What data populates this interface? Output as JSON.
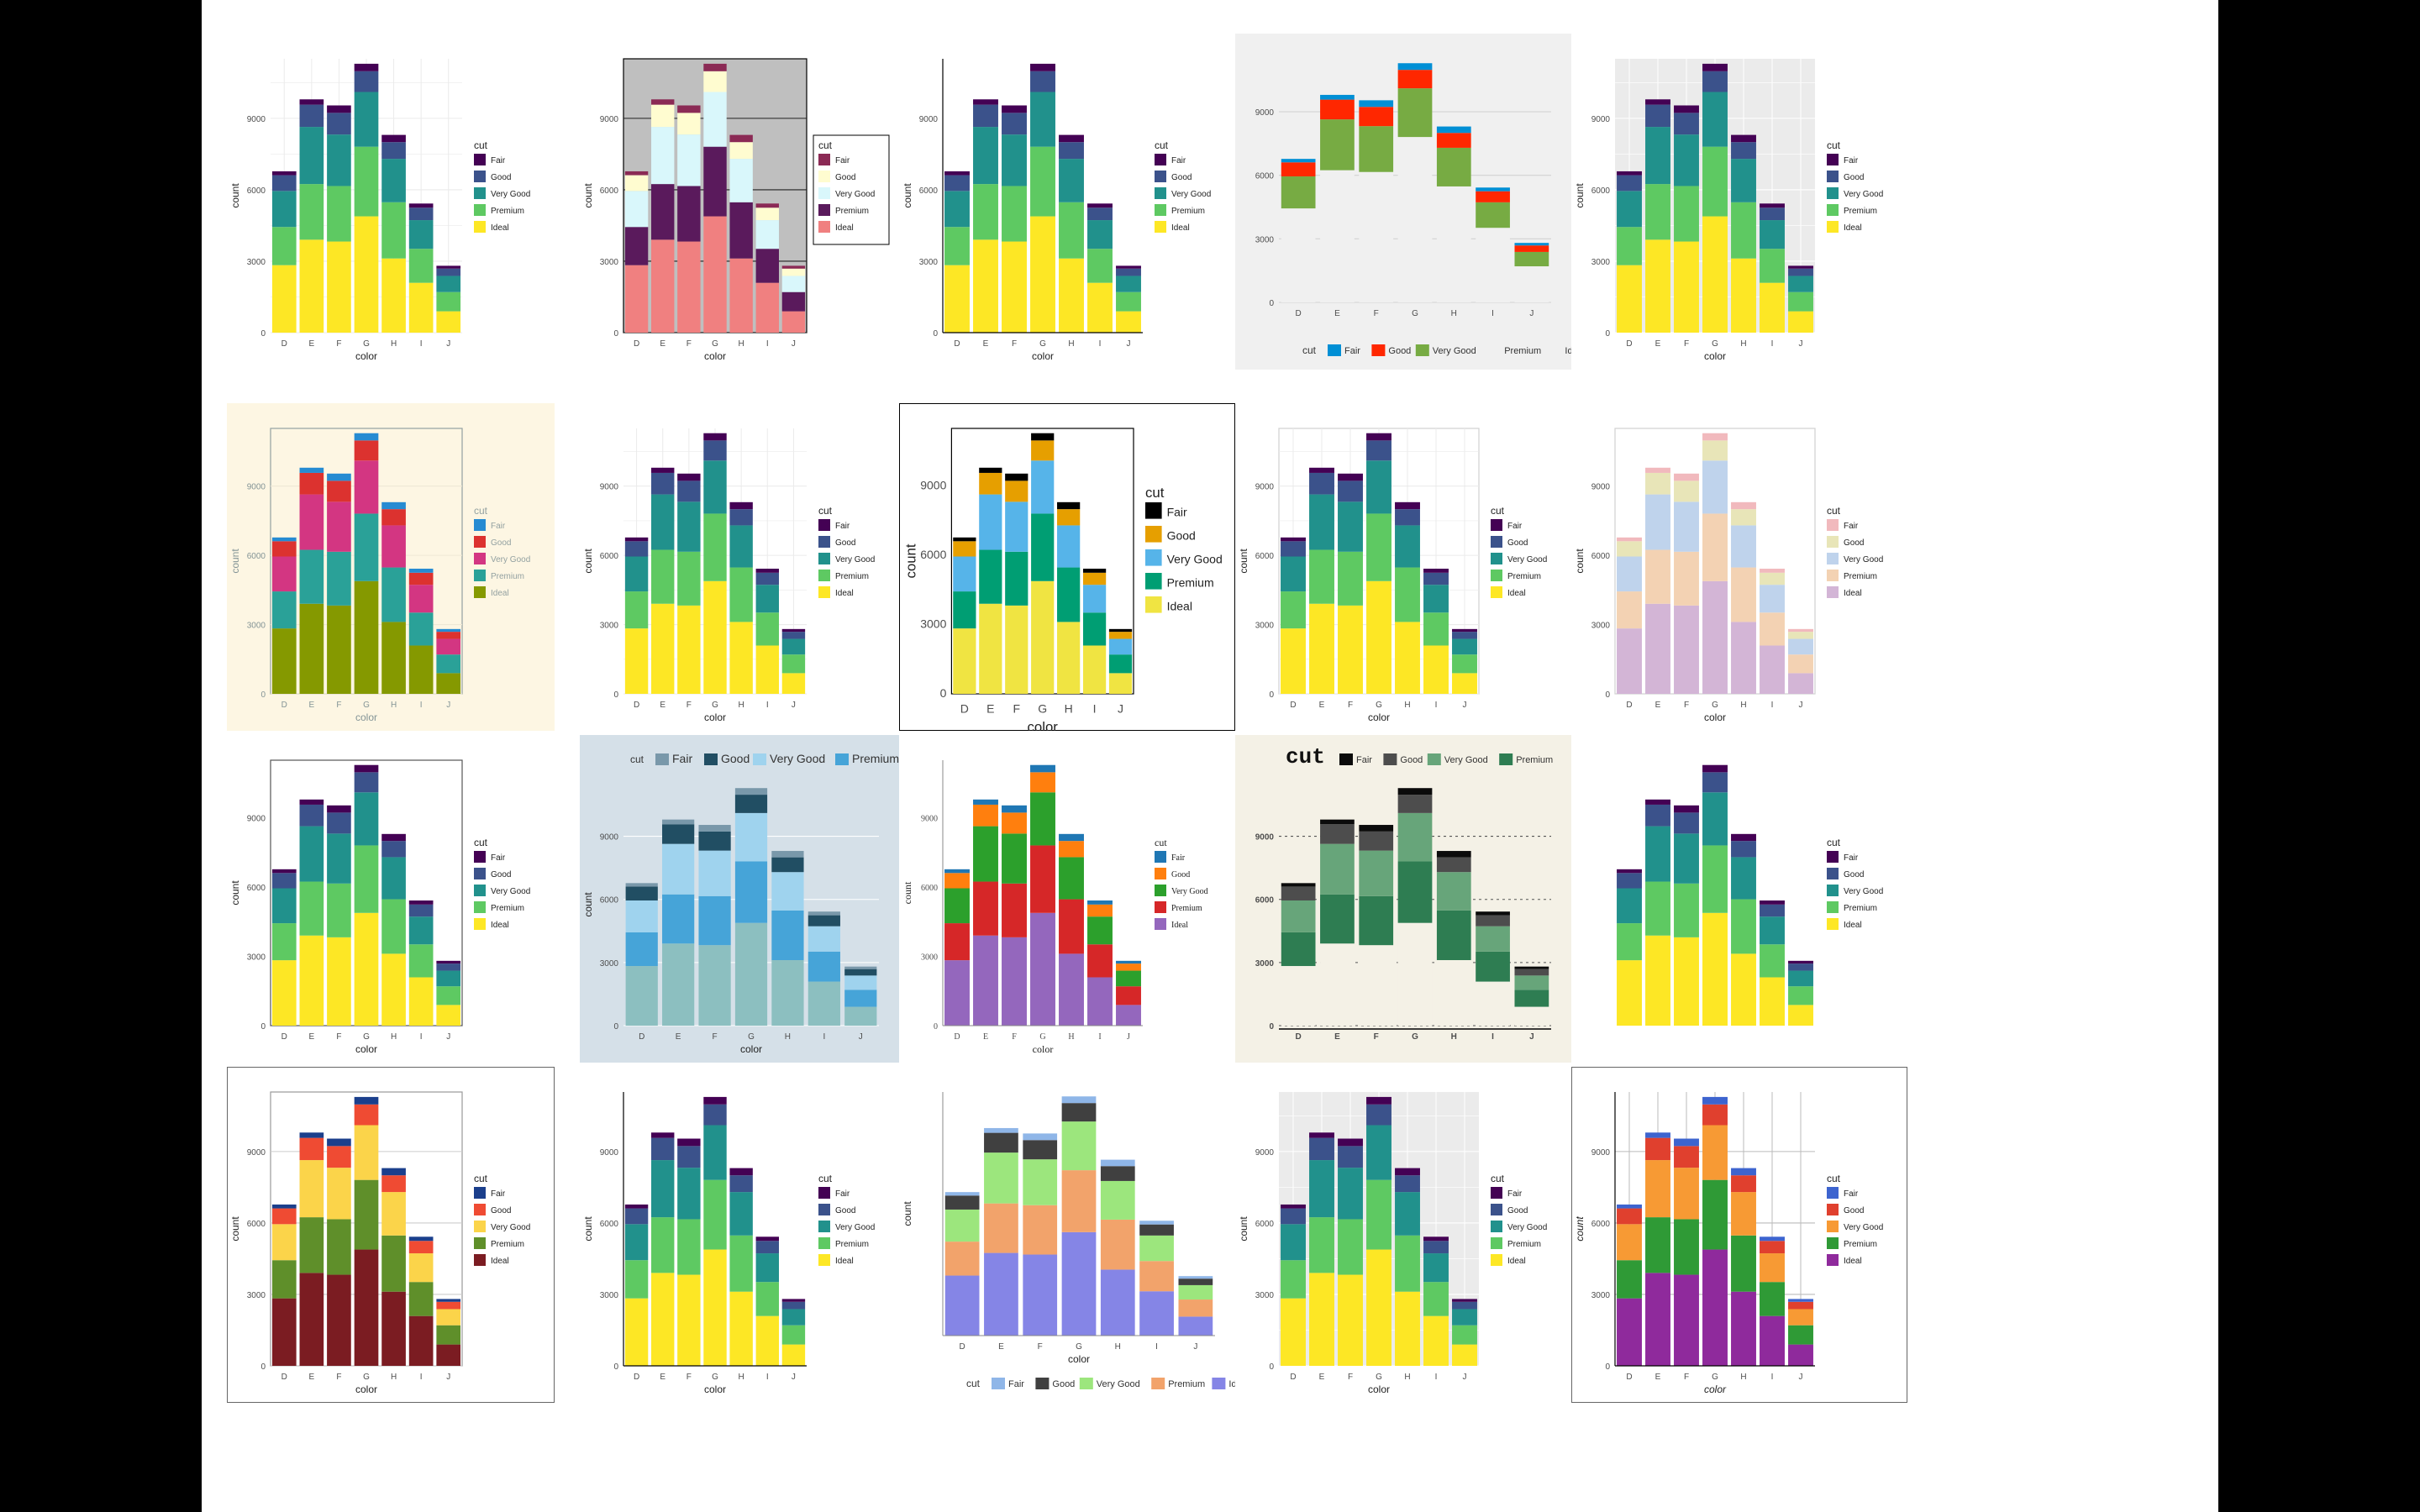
{
  "chart_data": {
    "type": "bar",
    "stacked": true,
    "categories": [
      "D",
      "E",
      "F",
      "G",
      "H",
      "I",
      "J"
    ],
    "xlabel": "color",
    "ylabel": "count",
    "legend_title": "cut",
    "yticks": [
      0,
      3000,
      6000,
      9000
    ],
    "ylim": [
      0,
      11500
    ],
    "series": [
      {
        "name": "Ideal",
        "values": [
          2834,
          3903,
          3826,
          4884,
          3115,
          2093,
          896
        ]
      },
      {
        "name": "Premium",
        "values": [
          1603,
          2337,
          2331,
          2924,
          2360,
          1428,
          808
        ]
      },
      {
        "name": "Very Good",
        "values": [
          1513,
          2400,
          2164,
          2299,
          1824,
          1204,
          678
        ]
      },
      {
        "name": "Good",
        "values": [
          662,
          933,
          909,
          871,
          702,
          522,
          307
        ]
      },
      {
        "name": "Fair",
        "values": [
          163,
          224,
          312,
          314,
          303,
          175,
          119
        ]
      }
    ],
    "legend_order": [
      "Fair",
      "Good",
      "Very Good",
      "Premium",
      "Ideal"
    ]
  },
  "themes": [
    {
      "col": 0,
      "row": 0,
      "bg": "#ffffff",
      "plot": "#ffffff",
      "grid": "#ebebeb",
      "minor": true,
      "axes": false,
      "legend": "right",
      "colors": [
        "#fde725",
        "#5ec962",
        "#21918c",
        "#3b528b",
        "#440154"
      ]
    },
    {
      "col": 1,
      "row": 0,
      "bg": "#ffffff",
      "plot": "#bfbfbf",
      "grid": "#222222",
      "minor": false,
      "axes": false,
      "box": "#000",
      "legend": "right",
      "legend_box": true,
      "colors": [
        "#f08080",
        "#5a1a5c",
        "#d9f7fb",
        "#fffcd0",
        "#8b2a55"
      ]
    },
    {
      "col": 2,
      "row": 0,
      "bg": "#ffffff",
      "plot": "#ffffff",
      "grid": null,
      "minor": false,
      "axes": true,
      "legend": "right",
      "colors": [
        "#fde725",
        "#5ec962",
        "#21918c",
        "#3b528b",
        "#440154"
      ]
    },
    {
      "col": 3,
      "row": 0,
      "bg": "#f0f0f0",
      "plot": "#f0f0f0",
      "grid": "#d2d2d2",
      "minor": false,
      "axes": false,
      "legend": "bottom",
      "floating": true,
      "colors": [
        "#f0f0f0",
        "#f0f0f0",
        "#77ab43",
        "#ff2700",
        "#008fd5"
      ]
    },
    {
      "col": 4,
      "row": 0,
      "bg": "#ffffff",
      "plot": "#ebebeb",
      "grid": "#ffffff",
      "minor": true,
      "axes": false,
      "legend": "right",
      "colors": [
        "#fde725",
        "#5ec962",
        "#21918c",
        "#3b528b",
        "#440154"
      ]
    },
    {
      "col": 0,
      "row": 1,
      "bg": "#fdf6e3",
      "plot": "#fdf6e3",
      "grid": "#eee8d5",
      "minor": false,
      "axes": false,
      "box": "#93a1a1",
      "legend": "right",
      "muted_legend": true,
      "colors": [
        "#859900",
        "#2aa198",
        "#d33682",
        "#dc322f",
        "#268bd2"
      ]
    },
    {
      "col": 1,
      "row": 1,
      "bg": "#ffffff",
      "plot": "#ffffff",
      "grid": "#ebebeb",
      "minor": true,
      "axes": false,
      "legend": "right",
      "colors": [
        "#fde725",
        "#5ec962",
        "#21918c",
        "#3b528b",
        "#440154"
      ]
    },
    {
      "col": 2,
      "row": 1,
      "bg": "#ffffff",
      "plot": "#ffffff",
      "grid": null,
      "minor": false,
      "axes": false,
      "box": "#000",
      "outer_box": "#000",
      "legend": "right",
      "big": true,
      "colors": [
        "#f0e442",
        "#009e73",
        "#56b4e9",
        "#e69f00",
        "#000000"
      ]
    },
    {
      "col": 3,
      "row": 1,
      "bg": "#ffffff",
      "plot": "#ffffff",
      "grid": "#ebebeb",
      "minor": true,
      "axes": false,
      "box": "#d0d0d0",
      "legend": "right",
      "colors": [
        "#fde725",
        "#5ec962",
        "#21918c",
        "#3b528b",
        "#440154"
      ]
    },
    {
      "col": 4,
      "row": 1,
      "bg": "#ffffff",
      "plot": "#ffffff",
      "grid": null,
      "minor": false,
      "axes": false,
      "box": "#d0d0d0",
      "legend": "right",
      "colors": [
        "#d3b5d6",
        "#f3d2b3",
        "#bfd3ec",
        "#e8e5b8",
        "#f1b9bd"
      ]
    },
    {
      "col": 0,
      "row": 2,
      "bg": "#ffffff",
      "plot": "#ffffff",
      "grid": null,
      "minor": false,
      "axes": false,
      "box": "#555",
      "legend": "right",
      "colors": [
        "#fde725",
        "#5ec962",
        "#21918c",
        "#3b528b",
        "#440154"
      ]
    },
    {
      "col": 1,
      "row": 2,
      "bg": "#d5e0e8",
      "plot": "#d5e0e8",
      "grid": "#ffffff",
      "minor": false,
      "axes": false,
      "legend": "top",
      "colors": [
        "#8cbfc0",
        "#46a4d8",
        "#9fd3ee",
        "#214e63",
        "#7998aa"
      ]
    },
    {
      "col": 2,
      "row": 2,
      "bg": "#ffffff",
      "plot": "#ffffff",
      "grid": null,
      "minor": false,
      "axes": "light",
      "legend": "right",
      "serif": true,
      "colors": [
        "#9467bd",
        "#d62728",
        "#2ca02c",
        "#ff7f0e",
        "#1f77b4"
      ]
    },
    {
      "col": 3,
      "row": 2,
      "bg": "#f4f1e6",
      "plot": "#f4f1e6",
      "grid": "#555555",
      "dotted": true,
      "minor": false,
      "axes": "xonly",
      "legend": "top",
      "mono_title": true,
      "colors": [
        "#f4f1e6",
        "#2e7d52",
        "#67a57a",
        "#4d4d4d",
        "#0b0b0b"
      ]
    },
    {
      "col": 4,
      "row": 2,
      "bg": "#ffffff",
      "plot": "#ffffff",
      "grid": null,
      "minor": false,
      "axes": false,
      "noaxis": true,
      "legend": "right",
      "colors": [
        "#fde725",
        "#5ec962",
        "#21918c",
        "#3b528b",
        "#440154"
      ]
    },
    {
      "col": 0,
      "row": 3,
      "bg": "#ffffff",
      "plot": "#ffffff",
      "grid": "#cccccc",
      "minor": false,
      "axes": false,
      "box": "#999",
      "outer_box": "#666",
      "legend": "right",
      "colors": [
        "#7b1c22",
        "#5f8f2a",
        "#fbd44a",
        "#ef4b33",
        "#1b3f8c"
      ]
    },
    {
      "col": 1,
      "row": 3,
      "bg": "#ffffff",
      "plot": "#ffffff",
      "grid": null,
      "minor": false,
      "axes": true,
      "legend": "right",
      "colors": [
        "#fde725",
        "#5ec962",
        "#21918c",
        "#3b528b",
        "#440154"
      ]
    },
    {
      "col": 2,
      "row": 3,
      "bg": "#ffffff",
      "plot": "#ffffff",
      "grid": null,
      "minor": false,
      "axes": "light",
      "legend": "bottom",
      "noticklabels": true,
      "colors": [
        "#8585e6",
        "#f2a36b",
        "#9ce67d",
        "#404040",
        "#8fb6e8"
      ]
    },
    {
      "col": 3,
      "row": 3,
      "bg": "#ffffff",
      "plot": "#ebebeb",
      "grid": "#ffffff",
      "minor": true,
      "axes": false,
      "legend": "right",
      "colors": [
        "#fde725",
        "#5ec962",
        "#21918c",
        "#3b528b",
        "#440154"
      ]
    },
    {
      "col": 4,
      "row": 3,
      "bg": "#ffffff",
      "plot": "#ffffff",
      "grid": "#bbbbbb",
      "minor": false,
      "vgrid": true,
      "axes": true,
      "outer_box": "#666",
      "legend": "right",
      "italic_title": true,
      "colors": [
        "#8f2a9c",
        "#2f9a36",
        "#f79a34",
        "#e0402e",
        "#3d64cf"
      ]
    }
  ]
}
